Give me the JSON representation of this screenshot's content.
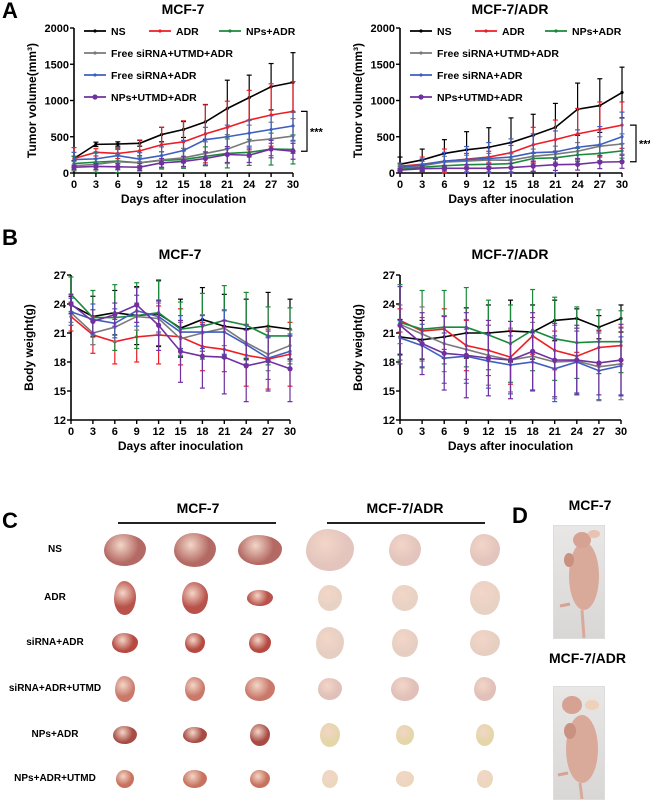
{
  "panels": {
    "A": "A",
    "B": "B",
    "C": "C",
    "D": "D"
  },
  "series_colors": {
    "NS": "#000000",
    "ADR": "#ee1c24",
    "NPs+ADR": "#1a8a3a",
    "Free siRNA+UTMD+ADR": "#7a7a7a",
    "Free siRNA+ADR": "#3f5fc0",
    "NPs+UTMD+ADR": "#7030a0"
  },
  "chart_data": [
    {
      "id": "tumor-mcf7",
      "type": "line",
      "title": "MCF-7",
      "xlabel": "Days after inoculation",
      "ylabel": "Tumor volume(mm³)",
      "x": [
        0,
        3,
        6,
        9,
        12,
        15,
        18,
        21,
        24,
        27,
        30
      ],
      "xticks": [
        "0",
        "3",
        "6",
        "9",
        "12",
        "15",
        "18",
        "21",
        "24",
        "27",
        "30"
      ],
      "yticks": [
        "0",
        "500",
        "1000",
        "1500",
        "2000"
      ],
      "ylim": [
        0,
        2000
      ],
      "legend": "top-left",
      "annotation": "***",
      "series": [
        {
          "name": "NS",
          "values": [
            200,
            395,
            400,
            410,
            530,
            600,
            705,
            890,
            1040,
            1190,
            1250
          ],
          "err": [
            30,
            30,
            30,
            40,
            100,
            110,
            240,
            390,
            310,
            320,
            410
          ]
        },
        {
          "name": "ADR",
          "values": [
            200,
            285,
            270,
            305,
            390,
            430,
            540,
            630,
            730,
            800,
            850
          ],
          "err": [
            150,
            50,
            70,
            150,
            240,
            290,
            400,
            360,
            410,
            430,
            410
          ]
        },
        {
          "name": "NPs+ADR",
          "values": [
            130,
            150,
            165,
            140,
            175,
            185,
            230,
            270,
            285,
            330,
            325
          ],
          "err": [
            100,
            140,
            160,
            100,
            120,
            120,
            130,
            200,
            180,
            220,
            200
          ]
        },
        {
          "name": "Free siRNA+UTMD+ADR",
          "values": [
            100,
            120,
            155,
            140,
            180,
            210,
            270,
            330,
            440,
            470,
            510
          ],
          "err": [
            60,
            80,
            100,
            80,
            110,
            130,
            160,
            200,
            220,
            230,
            240
          ]
        },
        {
          "name": "Free siRNA+ADR",
          "values": [
            185,
            195,
            240,
            190,
            240,
            310,
            460,
            500,
            550,
            600,
            650
          ],
          "err": [
            100,
            80,
            110,
            90,
            120,
            140,
            170,
            160,
            180,
            190,
            200
          ]
        },
        {
          "name": "NPs+UTMD+ADR",
          "values": [
            80,
            90,
            85,
            80,
            140,
            160,
            200,
            255,
            245,
            330,
            300
          ],
          "err": [
            30,
            40,
            40,
            50,
            60,
            70,
            90,
            110,
            100,
            120,
            110
          ]
        }
      ]
    },
    {
      "id": "tumor-mcf7adr",
      "type": "line",
      "title": "MCF-7/ADR",
      "xlabel": "Days after inoculation",
      "ylabel": "Tumor volume(mm³)",
      "x": [
        0,
        3,
        6,
        9,
        12,
        15,
        18,
        21,
        24,
        27,
        30
      ],
      "xticks": [
        "0",
        "3",
        "6",
        "9",
        "12",
        "15",
        "18",
        "21",
        "24",
        "27",
        "30"
      ],
      "yticks": [
        "0",
        "500",
        "1000",
        "1500",
        "2000"
      ],
      "ylim": [
        0,
        2000
      ],
      "legend": "top-left",
      "annotation": "***",
      "series": [
        {
          "name": "NS",
          "values": [
            120,
            180,
            270,
            320,
            355,
            420,
            520,
            630,
            880,
            930,
            1110
          ],
          "err": [
            100,
            150,
            190,
            250,
            270,
            340,
            290,
            330,
            360,
            370,
            350
          ]
        },
        {
          "name": "ADR",
          "values": [
            95,
            120,
            160,
            190,
            220,
            280,
            390,
            460,
            540,
            600,
            660
          ],
          "err": [
            40,
            100,
            170,
            80,
            80,
            100,
            240,
            270,
            350,
            380,
            320
          ]
        },
        {
          "name": "NPs+ADR",
          "values": [
            55,
            80,
            100,
            115,
            120,
            130,
            200,
            210,
            250,
            270,
            305
          ],
          "err": [
            30,
            40,
            50,
            50,
            50,
            60,
            70,
            80,
            90,
            100,
            100
          ]
        },
        {
          "name": "Free siRNA+UTMD+ADR",
          "values": [
            70,
            100,
            150,
            165,
            180,
            175,
            230,
            260,
            300,
            370,
            400
          ],
          "err": [
            40,
            60,
            80,
            80,
            90,
            90,
            100,
            110,
            120,
            130,
            140
          ]
        },
        {
          "name": "Free siRNA+ADR",
          "values": [
            75,
            115,
            165,
            185,
            200,
            220,
            280,
            290,
            355,
            390,
            500
          ],
          "err": [
            60,
            80,
            120,
            180,
            220,
            250,
            260,
            290,
            240,
            250,
            340
          ]
        },
        {
          "name": "NPs+UTMD+ADR",
          "values": [
            40,
            60,
            65,
            65,
            65,
            75,
            95,
            115,
            120,
            150,
            155
          ],
          "err": [
            20,
            40,
            40,
            50,
            50,
            60,
            70,
            80,
            80,
            90,
            90
          ]
        }
      ]
    },
    {
      "id": "weight-mcf7",
      "type": "line",
      "title": "MCF-7",
      "xlabel": "Days after inoculation",
      "ylabel": "Body weight(g)",
      "x": [
        0,
        3,
        6,
        9,
        12,
        15,
        18,
        21,
        24,
        27,
        30
      ],
      "xticks": [
        "0",
        "3",
        "6",
        "9",
        "12",
        "15",
        "18",
        "21",
        "24",
        "27",
        "30"
      ],
      "yticks": [
        "12",
        "15",
        "18",
        "21",
        "24",
        "27"
      ],
      "ylim": [
        12,
        27
      ],
      "series": [
        {
          "name": "NS",
          "values": [
            23.9,
            22.7,
            23.1,
            22.8,
            23.0,
            21.5,
            22.4,
            21.7,
            21.4,
            21.7,
            21.4
          ],
          "err": [
            0.9,
            2.1,
            2.3,
            3.0,
            3.4,
            3.0,
            3.3,
            3.3,
            3.1,
            3.5,
            3.1
          ]
        },
        {
          "name": "ADR",
          "values": [
            22.7,
            20.8,
            20.1,
            20.6,
            20.8,
            20.6,
            19.6,
            19.3,
            18.7,
            18.3,
            18.8
          ],
          "err": [
            1.5,
            1.9,
            2.3,
            2.6,
            3.0,
            2.9,
            2.5,
            2.3,
            3.2,
            3.1,
            3.3
          ]
        },
        {
          "name": "NPs+ADR",
          "values": [
            25.0,
            22.6,
            22.6,
            22.8,
            23.1,
            21.4,
            21.7,
            22.3,
            21.8,
            20.7,
            20.7
          ],
          "err": [
            1.8,
            2.8,
            3.4,
            3.4,
            3.4,
            2.8,
            3.4,
            3.6,
            3.4,
            3.0,
            2.9
          ]
        },
        {
          "name": "Free siRNA+UTMD+ADR",
          "values": [
            23.1,
            21.0,
            21.6,
            22.7,
            22.5,
            20.4,
            21.0,
            21.5,
            20.0,
            18.8,
            19.7
          ],
          "err": [
            1.0,
            1.2,
            1.5,
            1.4,
            1.6,
            1.7,
            1.9,
            1.8,
            1.8,
            1.7,
            1.6
          ]
        },
        {
          "name": "Free siRNA+ADR",
          "values": [
            23.2,
            22.4,
            22.0,
            23.3,
            22.7,
            21.1,
            21.1,
            21.1,
            19.8,
            18.4,
            19.1
          ],
          "err": [
            1.4,
            1.6,
            1.5,
            1.6,
            1.6,
            1.7,
            1.7,
            2.3,
            2.0,
            2.2,
            1.8
          ]
        },
        {
          "name": "NPs+UTMD+ADR",
          "values": [
            24.0,
            22.2,
            22.9,
            23.9,
            21.8,
            19.1,
            18.6,
            18.5,
            17.6,
            18.1,
            17.3
          ],
          "err": [
            1.0,
            1.2,
            1.2,
            1.8,
            2.6,
            3.2,
            3.3,
            3.8,
            3.7,
            3.1,
            3.4
          ]
        }
      ]
    },
    {
      "id": "weight-mcf7adr",
      "type": "line",
      "title": "MCF-7/ADR",
      "xlabel": "Days after inoculation",
      "ylabel": "Body weight(g)",
      "x": [
        0,
        3,
        6,
        9,
        12,
        15,
        18,
        21,
        24,
        27,
        30
      ],
      "xticks": [
        "0",
        "3",
        "6",
        "9",
        "12",
        "15",
        "18",
        "21",
        "24",
        "27",
        "30"
      ],
      "yticks": [
        "12",
        "15",
        "18",
        "21",
        "24",
        "27"
      ],
      "ylim": [
        12,
        27
      ],
      "series": [
        {
          "name": "NS",
          "values": [
            20.6,
            20.3,
            20.6,
            21.0,
            21.0,
            21.2,
            21.1,
            22.3,
            22.5,
            21.6,
            22.5
          ],
          "err": [
            1.8,
            2.0,
            2.2,
            2.6,
            2.9,
            3.2,
            2.8,
            2.1,
            1.0,
            1.2,
            1.4
          ]
        },
        {
          "name": "ADR",
          "values": [
            22.3,
            21.2,
            21.4,
            19.7,
            19.2,
            18.5,
            20.7,
            19.2,
            18.6,
            19.5,
            19.7
          ],
          "err": [
            1.2,
            1.4,
            2.1,
            2.6,
            2.6,
            2.8,
            1.9,
            2.0,
            0.4,
            1.8,
            1.9
          ]
        },
        {
          "name": "NPs+ADR",
          "values": [
            22.1,
            21.4,
            21.6,
            21.6,
            20.8,
            19.9,
            21.3,
            20.4,
            20.0,
            20.1,
            20.1
          ],
          "err": [
            3.9,
            4.0,
            3.8,
            4.1,
            3.6,
            4.0,
            4.2,
            4.3,
            3.7,
            3.3,
            3.2
          ]
        },
        {
          "name": "Free siRNA+UTMD+ADR",
          "values": [
            21.9,
            20.9,
            19.9,
            19.3,
            18.7,
            18.2,
            18.6,
            18.0,
            18.1,
            17.5,
            17.8
          ],
          "err": [
            2.0,
            2.8,
            2.9,
            3.1,
            3.1,
            3.3,
            3.5,
            3.8,
            3.4,
            3.5,
            3.7
          ]
        },
        {
          "name": "Free siRNA+ADR",
          "values": [
            20.5,
            19.7,
            18.4,
            18.6,
            18.1,
            17.7,
            18.0,
            17.3,
            18.0,
            17.1,
            17.6
          ],
          "err": [
            1.8,
            2.2,
            2.6,
            2.8,
            2.8,
            3.0,
            3.0,
            3.4,
            3.2,
            3.0,
            3.0
          ]
        },
        {
          "name": "NPs+UTMD+ADR",
          "values": [
            21.8,
            19.9,
            18.9,
            18.7,
            18.4,
            18.2,
            19.1,
            18.2,
            18.2,
            17.9,
            18.2
          ],
          "err": [
            4.0,
            3.2,
            3.8,
            4.4,
            3.9,
            4.0,
            4.0,
            3.8,
            3.6,
            3.3,
            3.7
          ]
        }
      ]
    }
  ],
  "panelC": {
    "groups": [
      "MCF-7",
      "MCF-7/ADR"
    ],
    "rows": [
      "NS",
      "ADR",
      "siRNA+ADR",
      "siRNA+ADR+UTMD",
      "NPs+ADR",
      "NPs+ADR+UTMD"
    ],
    "tumor_colors_mcf7": [
      "#b46a64",
      "#b8524a",
      "#b54a42",
      "#c9786a",
      "#a64c44",
      "#c7725e"
    ],
    "tumor_colors_mcf7adr": [
      "#e3c5bd",
      "#e8d2c4",
      "#e6cfc2",
      "#e0c0b8",
      "#e4d6a8",
      "#ecd7bd"
    ]
  },
  "panelD": {
    "labels": [
      "MCF-7",
      "MCF-7/ADR"
    ]
  }
}
